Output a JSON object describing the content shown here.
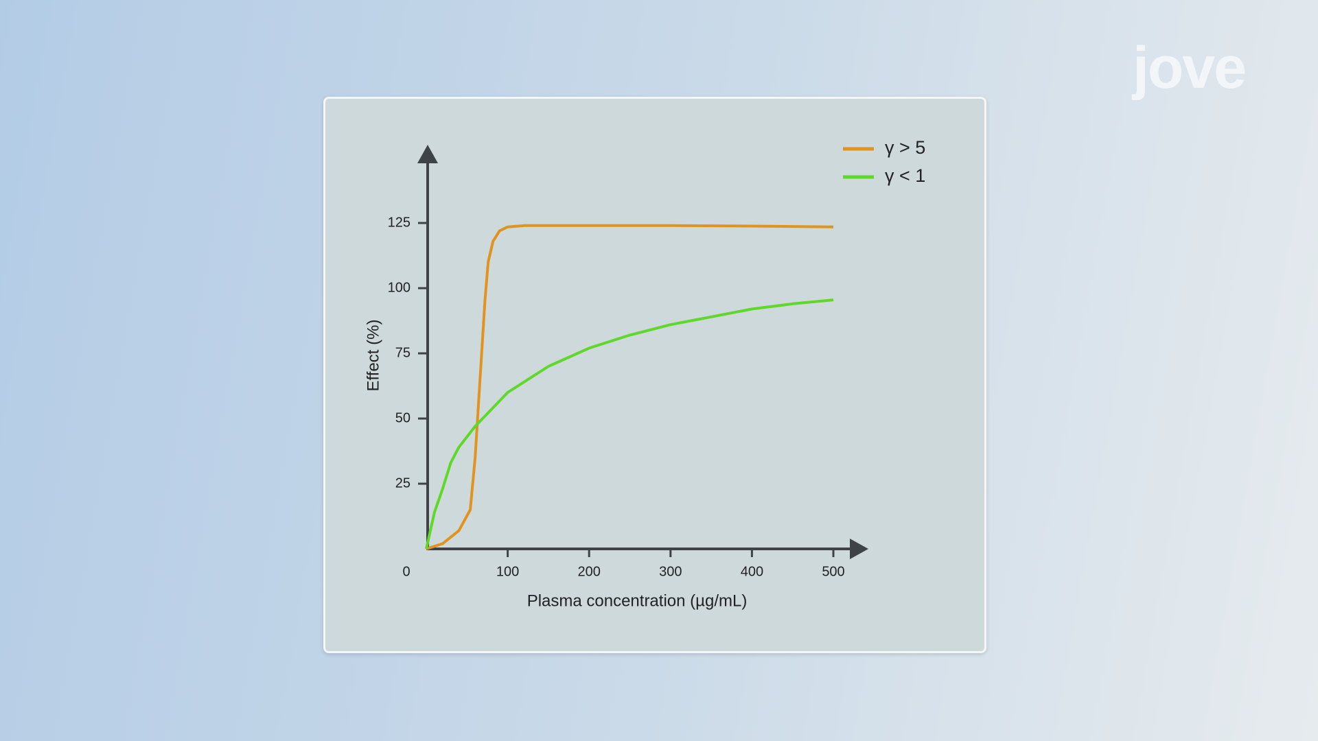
{
  "logo": "jove",
  "chart_data": {
    "type": "line",
    "xlabel": "Plasma concentration (µg/mL)",
    "ylabel": "Effect (%)",
    "xlim": [
      0,
      543
    ],
    "ylim": [
      0,
      155
    ],
    "xticks": [
      0,
      100,
      200,
      300,
      400,
      500
    ],
    "yticks": [
      25,
      50,
      75,
      100,
      125
    ],
    "legend": "top-right",
    "series": [
      {
        "name": "γ > 5",
        "color": "#e0941f",
        "x": [
          0,
          20,
          40,
          54,
          60,
          66,
          72,
          76,
          82,
          90,
          100,
          120,
          200,
          300,
          400,
          500
        ],
        "values": [
          0,
          2,
          7,
          15,
          35,
          65,
          95,
          110,
          118,
          122,
          123.5,
          124,
          124,
          124,
          123.8,
          123.5
        ]
      },
      {
        "name": "γ < 1",
        "color": "#5fd82a",
        "x": [
          0,
          10,
          20,
          30,
          40,
          60,
          100,
          150,
          200,
          250,
          300,
          350,
          400,
          450,
          500
        ],
        "values": [
          0,
          14,
          23,
          33,
          39,
          47,
          60,
          70,
          77,
          82,
          86,
          89,
          92,
          94,
          95.5
        ]
      }
    ]
  }
}
